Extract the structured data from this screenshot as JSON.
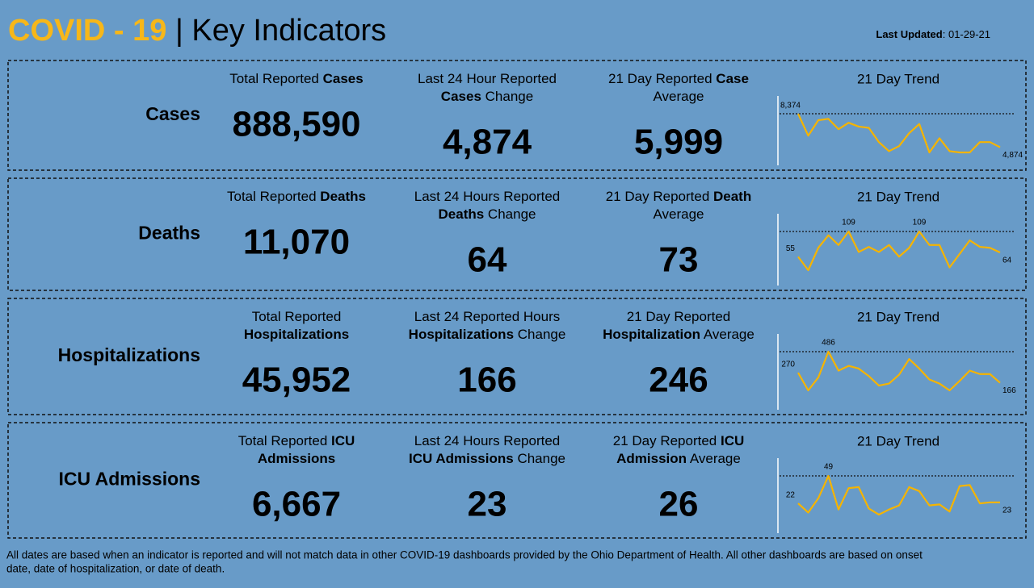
{
  "header": {
    "title": [
      {
        "text": "COVID - 19",
        "bold": true,
        "color": "#f7b719"
      },
      {
        "text": " | Key Indicators"
      }
    ],
    "updated": [
      {
        "text": "Last Updated",
        "bold": true
      },
      {
        "text": ": 01-29-21"
      }
    ]
  },
  "rows": [
    {
      "label": "Cases",
      "metrics": [
        {
          "title_lines": [
            [
              {
                "text": "Total Reported "
              },
              {
                "text": "Cases",
                "bold": true
              }
            ]
          ],
          "value": "888,590"
        },
        {
          "title_lines": [
            [
              {
                "text": "Last 24 Hour Reported"
              }
            ],
            [
              {
                "text": "Cases",
                "bold": true
              },
              {
                "text": " Change"
              }
            ]
          ],
          "value": "4,874"
        },
        {
          "title_lines": [
            [
              {
                "text": "21 Day Reported "
              },
              {
                "text": "Case",
                "bold": true
              }
            ],
            [
              {
                "text": "Average"
              }
            ]
          ],
          "value": "5,999"
        }
      ],
      "trend": {
        "title": "21 Day Trend",
        "values": [
          8374,
          6080,
          7700,
          7840,
          6760,
          7430,
          7030,
          6900,
          5410,
          4460,
          5000,
          6350,
          7300,
          4330,
          5810,
          4460,
          4330,
          4330,
          5410,
          5410,
          4874
        ],
        "value_labels": [
          "8,374",
          null,
          null,
          null,
          null,
          null,
          null,
          null,
          null,
          null,
          null,
          null,
          null,
          null,
          null,
          null,
          null,
          null,
          null,
          null,
          "4,874"
        ]
      }
    },
    {
      "label": "Deaths",
      "metrics": [
        {
          "title_lines": [
            [
              {
                "text": "Total Reported "
              },
              {
                "text": "Deaths",
                "bold": true
              }
            ]
          ],
          "value": "11,070"
        },
        {
          "title_lines": [
            [
              {
                "text": "Last 24 Hours Reported"
              }
            ],
            [
              {
                "text": "Deaths",
                "bold": true
              },
              {
                "text": " Change"
              }
            ]
          ],
          "value": "64"
        },
        {
          "title_lines": [
            [
              {
                "text": "21 Day Reported "
              },
              {
                "text": "Death",
                "bold": true
              }
            ],
            [
              {
                "text": "Average"
              }
            ]
          ],
          "value": "73"
        }
      ],
      "trend": {
        "title": "21 Day Trend",
        "values": [
          55,
          26,
          74,
          101,
          80,
          109,
          65,
          76,
          65,
          80,
          55,
          74,
          109,
          80,
          80,
          32,
          61,
          90,
          76,
          74,
          64
        ],
        "value_labels": [
          "55",
          null,
          null,
          null,
          null,
          "109",
          null,
          null,
          null,
          null,
          null,
          null,
          "109",
          null,
          null,
          null,
          null,
          null,
          null,
          null,
          "64"
        ]
      }
    },
    {
      "label": "Hospitalizations",
      "metrics": [
        {
          "title_lines": [
            [
              {
                "text": "Total Reported"
              }
            ],
            [
              {
                "text": "Hospitalizations",
                "bold": true
              }
            ]
          ],
          "value": "45,952"
        },
        {
          "title_lines": [
            [
              {
                "text": "Last 24 Reported Hours"
              }
            ],
            [
              {
                "text": "Hospitalizations",
                "bold": true
              },
              {
                "text": " Change"
              }
            ]
          ],
          "value": "166"
        },
        {
          "title_lines": [
            [
              {
                "text": "21 Day Reported"
              }
            ],
            [
              {
                "text": "Hospitalization",
                "bold": true
              },
              {
                "text": " Average"
              }
            ]
          ],
          "value": "246"
        }
      ],
      "trend": {
        "title": "21 Day Trend",
        "values": [
          270,
          88,
          221,
          486,
          291,
          340,
          312,
          235,
          137,
          158,
          249,
          410,
          312,
          200,
          158,
          88,
          186,
          291,
          256,
          256,
          166
        ],
        "value_labels": [
          "270",
          null,
          null,
          "486",
          null,
          null,
          null,
          null,
          null,
          null,
          null,
          null,
          null,
          null,
          null,
          null,
          null,
          null,
          null,
          null,
          "166"
        ]
      }
    },
    {
      "label": "ICU Admissions",
      "metrics": [
        {
          "title_lines": [
            [
              {
                "text": "Total Reported "
              },
              {
                "text": "ICU",
                "bold": true
              }
            ],
            [
              {
                "text": "Admissions",
                "bold": true
              }
            ]
          ],
          "value": "6,667"
        },
        {
          "title_lines": [
            [
              {
                "text": "Last 24 Hours Reported"
              }
            ],
            [
              {
                "text": "ICU Admissions",
                "bold": true
              },
              {
                "text": " Change"
              }
            ]
          ],
          "value": "23"
        },
        {
          "title_lines": [
            [
              {
                "text": "21 Day Reported "
              },
              {
                "text": "ICU",
                "bold": true
              }
            ],
            [
              {
                "text": "Admission",
                "bold": true
              },
              {
                "text": " Average"
              }
            ]
          ],
          "value": "26"
        }
      ],
      "trend": {
        "title": "21 Day Trend",
        "values": [
          22,
          13,
          27,
          49,
          16,
          37,
          38,
          17,
          11,
          16,
          20,
          38,
          34,
          20,
          21,
          14,
          39,
          40,
          22,
          23,
          23
        ],
        "value_labels": [
          "22",
          null,
          null,
          "49",
          null,
          null,
          null,
          null,
          null,
          null,
          null,
          null,
          null,
          null,
          null,
          null,
          null,
          null,
          null,
          null,
          "23"
        ]
      }
    }
  ],
  "footer_lines": [
    "All dates are based when an indicator is reported and will not match data in other COVID-19 dashboards provided by the Ohio Department of Health. All other dashboards are based on onset",
    "date, date of hospitalization, or date of death."
  ]
}
